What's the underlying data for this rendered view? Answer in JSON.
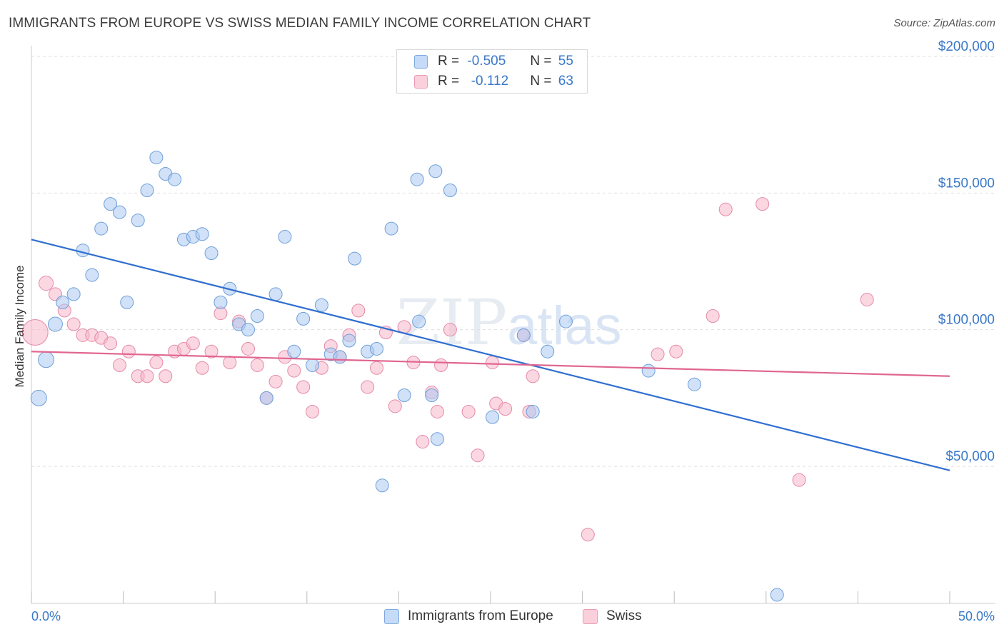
{
  "header": {
    "title": "IMMIGRANTS FROM EUROPE VS SWISS MEDIAN FAMILY INCOME CORRELATION CHART",
    "source": "Source: ZipAtlas.com"
  },
  "watermark": {
    "zip": "ZIP",
    "atlas": "atlas"
  },
  "legend": {
    "rows": [
      {
        "r_label": "R =",
        "r_value": "-0.505",
        "n_label": "N =",
        "n_value": "55",
        "color": "#a9c8f2"
      },
      {
        "r_label": "R =",
        "r_value": " -0.112",
        "n_label": "N =",
        "n_value": "63",
        "color": "#f7b7cb"
      }
    ]
  },
  "bottom_legend": [
    {
      "label": "Immigrants from Europe",
      "color": "#a9c8f2"
    },
    {
      "label": "Swiss",
      "color": "#f7b7cb"
    }
  ],
  "colors": {
    "blue_fill": "#a9c8f2",
    "blue_stroke": "#6f9fd8",
    "blue_line": "#2f6fd0",
    "pink_fill": "#f7b7cb",
    "pink_stroke": "#e58aa8",
    "pink_line": "#e06690",
    "tick_text": "#3a78c8",
    "grid": "#dedede"
  },
  "chart_data": {
    "type": "scatter",
    "title": "IMMIGRANTS FROM EUROPE VS SWISS MEDIAN FAMILY INCOME CORRELATION CHART",
    "xlabel": "",
    "ylabel": "Median Family Income",
    "xlim": [
      0,
      50
    ],
    "ylim": [
      0,
      205000
    ],
    "x_tick_labels": [
      {
        "value": 0,
        "label": "0.0%"
      },
      {
        "value": 50,
        "label": "50.0%"
      }
    ],
    "y_ticks": [
      {
        "value": 50000,
        "label": "$50,000"
      },
      {
        "value": 100000,
        "label": "$100,000"
      },
      {
        "value": 150000,
        "label": "$150,000"
      },
      {
        "value": 200000,
        "label": "$200,000"
      }
    ],
    "series": [
      {
        "name": "Immigrants from Europe",
        "R": -0.505,
        "N": 55,
        "trend": {
          "x": [
            0,
            50
          ],
          "y": [
            133000,
            48500
          ]
        },
        "points": [
          {
            "x": 0.4,
            "y": 75000,
            "s": 11
          },
          {
            "x": 0.8,
            "y": 89000,
            "s": 11
          },
          {
            "x": 1.3,
            "y": 102000,
            "s": 10
          },
          {
            "x": 1.7,
            "y": 110000,
            "s": 9
          },
          {
            "x": 2.3,
            "y": 113000,
            "s": 9
          },
          {
            "x": 2.8,
            "y": 129000,
            "s": 9
          },
          {
            "x": 3.3,
            "y": 120000,
            "s": 9
          },
          {
            "x": 3.8,
            "y": 137000,
            "s": 9
          },
          {
            "x": 4.3,
            "y": 146000,
            "s": 9
          },
          {
            "x": 4.8,
            "y": 143000,
            "s": 9
          },
          {
            "x": 5.2,
            "y": 110000,
            "s": 9
          },
          {
            "x": 5.8,
            "y": 140000,
            "s": 9
          },
          {
            "x": 6.3,
            "y": 151000,
            "s": 9
          },
          {
            "x": 6.8,
            "y": 163000,
            "s": 9
          },
          {
            "x": 7.3,
            "y": 157000,
            "s": 9
          },
          {
            "x": 7.8,
            "y": 155000,
            "s": 9
          },
          {
            "x": 8.3,
            "y": 133000,
            "s": 9
          },
          {
            "x": 8.8,
            "y": 134000,
            "s": 9
          },
          {
            "x": 9.3,
            "y": 135000,
            "s": 9
          },
          {
            "x": 9.8,
            "y": 128000,
            "s": 9
          },
          {
            "x": 10.3,
            "y": 110000,
            "s": 9
          },
          {
            "x": 10.8,
            "y": 115000,
            "s": 9
          },
          {
            "x": 11.3,
            "y": 102000,
            "s": 9
          },
          {
            "x": 11.8,
            "y": 100000,
            "s": 9
          },
          {
            "x": 12.3,
            "y": 105000,
            "s": 9
          },
          {
            "x": 12.8,
            "y": 75000,
            "s": 9
          },
          {
            "x": 13.3,
            "y": 113000,
            "s": 9
          },
          {
            "x": 13.8,
            "y": 134000,
            "s": 9
          },
          {
            "x": 14.3,
            "y": 92000,
            "s": 9
          },
          {
            "x": 14.8,
            "y": 104000,
            "s": 9
          },
          {
            "x": 15.3,
            "y": 87000,
            "s": 9
          },
          {
            "x": 15.8,
            "y": 109000,
            "s": 9
          },
          {
            "x": 16.3,
            "y": 91000,
            "s": 9
          },
          {
            "x": 16.8,
            "y": 90000,
            "s": 9
          },
          {
            "x": 17.3,
            "y": 96000,
            "s": 9
          },
          {
            "x": 17.6,
            "y": 126000,
            "s": 9
          },
          {
            "x": 18.3,
            "y": 92000,
            "s": 9
          },
          {
            "x": 18.8,
            "y": 93000,
            "s": 9
          },
          {
            "x": 19.1,
            "y": 43000,
            "s": 9
          },
          {
            "x": 19.6,
            "y": 137000,
            "s": 9
          },
          {
            "x": 20.3,
            "y": 76000,
            "s": 9
          },
          {
            "x": 21.0,
            "y": 155000,
            "s": 9
          },
          {
            "x": 21.1,
            "y": 103000,
            "s": 9
          },
          {
            "x": 21.8,
            "y": 76000,
            "s": 9
          },
          {
            "x": 22.1,
            "y": 60000,
            "s": 9
          },
          {
            "x": 22.8,
            "y": 151000,
            "s": 9
          },
          {
            "x": 22.0,
            "y": 158000,
            "s": 9
          },
          {
            "x": 25.1,
            "y": 68000,
            "s": 9
          },
          {
            "x": 26.8,
            "y": 98000,
            "s": 9
          },
          {
            "x": 27.3,
            "y": 70000,
            "s": 9
          },
          {
            "x": 28.1,
            "y": 92000,
            "s": 9
          },
          {
            "x": 29.1,
            "y": 103000,
            "s": 9
          },
          {
            "x": 33.6,
            "y": 85000,
            "s": 9
          },
          {
            "x": 36.1,
            "y": 80000,
            "s": 9
          },
          {
            "x": 40.6,
            "y": 3000,
            "s": 9
          }
        ]
      },
      {
        "name": "Swiss",
        "R": -0.112,
        "N": 63,
        "trend": {
          "x": [
            0,
            50
          ],
          "y": [
            92000,
            83000
          ]
        },
        "points": [
          {
            "x": 0.2,
            "y": 99000,
            "s": 18
          },
          {
            "x": 0.8,
            "y": 117000,
            "s": 10
          },
          {
            "x": 1.3,
            "y": 113000,
            "s": 9
          },
          {
            "x": 1.8,
            "y": 107000,
            "s": 9
          },
          {
            "x": 2.3,
            "y": 102000,
            "s": 9
          },
          {
            "x": 2.8,
            "y": 98000,
            "s": 9
          },
          {
            "x": 3.3,
            "y": 98000,
            "s": 9
          },
          {
            "x": 3.8,
            "y": 97000,
            "s": 9
          },
          {
            "x": 4.3,
            "y": 95000,
            "s": 9
          },
          {
            "x": 4.8,
            "y": 87000,
            "s": 9
          },
          {
            "x": 5.3,
            "y": 92000,
            "s": 9
          },
          {
            "x": 5.8,
            "y": 83000,
            "s": 9
          },
          {
            "x": 6.3,
            "y": 83000,
            "s": 9
          },
          {
            "x": 6.8,
            "y": 88000,
            "s": 9
          },
          {
            "x": 7.3,
            "y": 83000,
            "s": 9
          },
          {
            "x": 7.8,
            "y": 92000,
            "s": 9
          },
          {
            "x": 8.3,
            "y": 93000,
            "s": 9
          },
          {
            "x": 8.8,
            "y": 95000,
            "s": 9
          },
          {
            "x": 9.3,
            "y": 86000,
            "s": 9
          },
          {
            "x": 9.8,
            "y": 92000,
            "s": 9
          },
          {
            "x": 10.3,
            "y": 106000,
            "s": 9
          },
          {
            "x": 10.8,
            "y": 88000,
            "s": 9
          },
          {
            "x": 11.3,
            "y": 103000,
            "s": 9
          },
          {
            "x": 11.8,
            "y": 93000,
            "s": 9
          },
          {
            "x": 12.3,
            "y": 87000,
            "s": 9
          },
          {
            "x": 12.8,
            "y": 75000,
            "s": 9
          },
          {
            "x": 13.3,
            "y": 81000,
            "s": 9
          },
          {
            "x": 13.8,
            "y": 90000,
            "s": 9
          },
          {
            "x": 14.3,
            "y": 85000,
            "s": 9
          },
          {
            "x": 14.8,
            "y": 79000,
            "s": 9
          },
          {
            "x": 15.3,
            "y": 70000,
            "s": 9
          },
          {
            "x": 15.8,
            "y": 86000,
            "s": 9
          },
          {
            "x": 16.3,
            "y": 94000,
            "s": 9
          },
          {
            "x": 16.8,
            "y": 90000,
            "s": 9
          },
          {
            "x": 17.3,
            "y": 98000,
            "s": 9
          },
          {
            "x": 17.8,
            "y": 107000,
            "s": 9
          },
          {
            "x": 18.3,
            "y": 79000,
            "s": 9
          },
          {
            "x": 18.8,
            "y": 86000,
            "s": 9
          },
          {
            "x": 19.3,
            "y": 99000,
            "s": 9
          },
          {
            "x": 19.8,
            "y": 72000,
            "s": 9
          },
          {
            "x": 20.3,
            "y": 101000,
            "s": 9
          },
          {
            "x": 20.8,
            "y": 88000,
            "s": 9
          },
          {
            "x": 21.3,
            "y": 59000,
            "s": 9
          },
          {
            "x": 21.8,
            "y": 77000,
            "s": 9
          },
          {
            "x": 22.1,
            "y": 70000,
            "s": 9
          },
          {
            "x": 22.3,
            "y": 87000,
            "s": 9
          },
          {
            "x": 22.8,
            "y": 100000,
            "s": 9
          },
          {
            "x": 23.8,
            "y": 70000,
            "s": 9
          },
          {
            "x": 24.3,
            "y": 54000,
            "s": 9
          },
          {
            "x": 25.1,
            "y": 88000,
            "s": 9
          },
          {
            "x": 25.3,
            "y": 73000,
            "s": 9
          },
          {
            "x": 25.8,
            "y": 71000,
            "s": 9
          },
          {
            "x": 26.8,
            "y": 98000,
            "s": 9
          },
          {
            "x": 27.3,
            "y": 83000,
            "s": 9
          },
          {
            "x": 27.1,
            "y": 70000,
            "s": 9
          },
          {
            "x": 30.3,
            "y": 25000,
            "s": 9
          },
          {
            "x": 34.1,
            "y": 91000,
            "s": 9
          },
          {
            "x": 35.1,
            "y": 92000,
            "s": 9
          },
          {
            "x": 37.1,
            "y": 105000,
            "s": 9
          },
          {
            "x": 37.8,
            "y": 144000,
            "s": 9
          },
          {
            "x": 39.8,
            "y": 146000,
            "s": 9
          },
          {
            "x": 41.8,
            "y": 45000,
            "s": 9
          },
          {
            "x": 45.5,
            "y": 111000,
            "s": 9
          }
        ]
      }
    ]
  }
}
